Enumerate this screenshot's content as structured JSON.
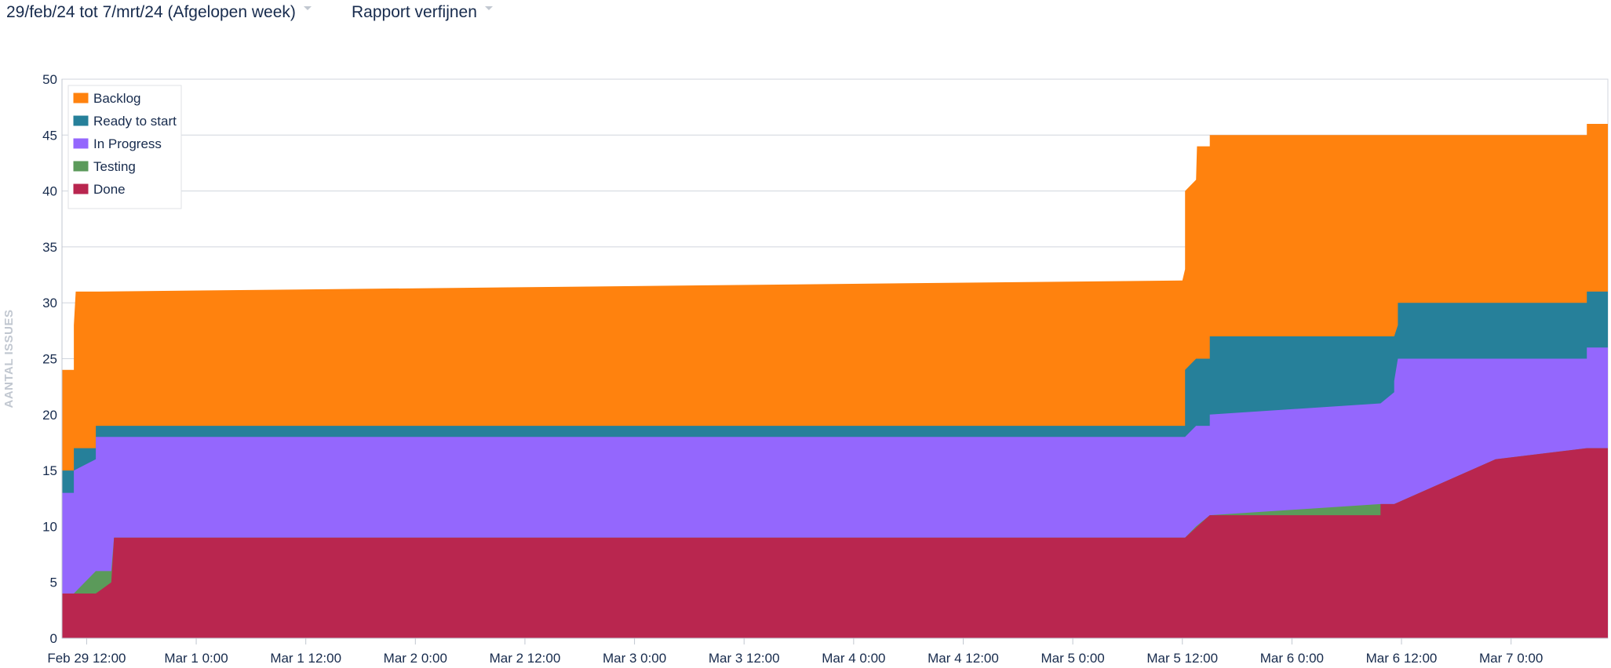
{
  "toolbar": {
    "date_range_label": "29/feb/24 tot 7/mrt/24 (Afgelopen week)",
    "refine_label": "Rapport verfijnen"
  },
  "chart_data": {
    "type": "area",
    "stacked": true,
    "ylabel": "AANTAL ISSUES",
    "ylim": [
      0,
      50
    ],
    "yticks": [
      0,
      5,
      10,
      15,
      20,
      25,
      30,
      35,
      40,
      45,
      50
    ],
    "x_unit": "hours since Feb 29 0:00",
    "xlim": [
      9.3,
      178.6
    ],
    "xticks": [
      {
        "x": 12,
        "label": "Feb 29 12:00"
      },
      {
        "x": 24,
        "label": "Mar 1 0:00"
      },
      {
        "x": 36,
        "label": "Mar 1 12:00"
      },
      {
        "x": 48,
        "label": "Mar 2 0:00"
      },
      {
        "x": 60,
        "label": "Mar 2 12:00"
      },
      {
        "x": 72,
        "label": "Mar 3 0:00"
      },
      {
        "x": 84,
        "label": "Mar 3 12:00"
      },
      {
        "x": 96,
        "label": "Mar 4 0:00"
      },
      {
        "x": 108,
        "label": "Mar 4 12:00"
      },
      {
        "x": 120,
        "label": "Mar 5 0:00"
      },
      {
        "x": 132,
        "label": "Mar 5 12:00"
      },
      {
        "x": 144,
        "label": "Mar 6 0:00"
      },
      {
        "x": 156,
        "label": "Mar 6 12:00"
      },
      {
        "x": 168,
        "label": "Mar 7 0:00"
      }
    ],
    "grid": true,
    "legend_position": "top-left",
    "series": [
      {
        "name": "Done",
        "color": "#b9264f",
        "points": [
          [
            9.3,
            4
          ],
          [
            10.6,
            4
          ],
          [
            10.6,
            4
          ],
          [
            13.0,
            4
          ],
          [
            14.7,
            5
          ],
          [
            15.0,
            9
          ],
          [
            132.3,
            9
          ],
          [
            135.0,
            11
          ],
          [
            153.7,
            11
          ],
          [
            153.7,
            12
          ],
          [
            155.2,
            12
          ],
          [
            166.3,
            16
          ],
          [
            176.3,
            17
          ],
          [
            178.6,
            17
          ]
        ]
      },
      {
        "name": "Testing",
        "color": "#5b9a5a",
        "points": [
          [
            9.3,
            4
          ],
          [
            10.6,
            4
          ],
          [
            10.6,
            4
          ],
          [
            13.0,
            6
          ],
          [
            14.7,
            6
          ],
          [
            15.0,
            9
          ],
          [
            132.3,
            9
          ],
          [
            133.5,
            10
          ],
          [
            135.0,
            11
          ],
          [
            153.7,
            12
          ],
          [
            155.2,
            12
          ],
          [
            166.3,
            16
          ],
          [
            176.3,
            17
          ],
          [
            178.6,
            17
          ]
        ]
      },
      {
        "name": "In Progress",
        "color": "#9467fd",
        "points": [
          [
            9.3,
            13
          ],
          [
            10.6,
            13
          ],
          [
            10.6,
            15
          ],
          [
            13.0,
            16
          ],
          [
            13.0,
            18
          ],
          [
            14.7,
            18
          ],
          [
            15.0,
            18
          ],
          [
            132.3,
            18
          ],
          [
            133.5,
            19
          ],
          [
            135.0,
            19
          ],
          [
            135.0,
            20
          ],
          [
            153.7,
            21
          ],
          [
            155.2,
            22
          ],
          [
            155.2,
            23
          ],
          [
            155.6,
            25
          ],
          [
            176.3,
            25
          ],
          [
            176.3,
            26
          ],
          [
            178.6,
            26
          ]
        ]
      },
      {
        "name": "Ready to start",
        "color": "#26809a",
        "points": [
          [
            9.3,
            15
          ],
          [
            10.6,
            15
          ],
          [
            10.6,
            17
          ],
          [
            13.0,
            17
          ],
          [
            13.0,
            19
          ],
          [
            14.7,
            19
          ],
          [
            15.0,
            19
          ],
          [
            132.3,
            19
          ],
          [
            132.3,
            24
          ],
          [
            133.5,
            25
          ],
          [
            135.0,
            25
          ],
          [
            135.0,
            27
          ],
          [
            155.2,
            27
          ],
          [
            155.6,
            28
          ],
          [
            155.6,
            30
          ],
          [
            176.3,
            30
          ],
          [
            176.3,
            31
          ],
          [
            178.6,
            31
          ]
        ]
      },
      {
        "name": "Backlog",
        "color": "#ff820e",
        "points": [
          [
            9.3,
            24
          ],
          [
            10.6,
            24
          ],
          [
            10.6,
            28
          ],
          [
            10.8,
            31
          ],
          [
            13.0,
            31
          ],
          [
            132.0,
            32
          ],
          [
            132.3,
            33
          ],
          [
            132.3,
            40
          ],
          [
            133.5,
            41
          ],
          [
            133.6,
            44
          ],
          [
            134.0,
            44
          ],
          [
            135.0,
            44
          ],
          [
            135.0,
            45
          ],
          [
            155.2,
            45
          ],
          [
            155.6,
            45
          ],
          [
            176.3,
            45
          ],
          [
            176.3,
            46
          ],
          [
            178.6,
            46
          ]
        ]
      }
    ]
  }
}
